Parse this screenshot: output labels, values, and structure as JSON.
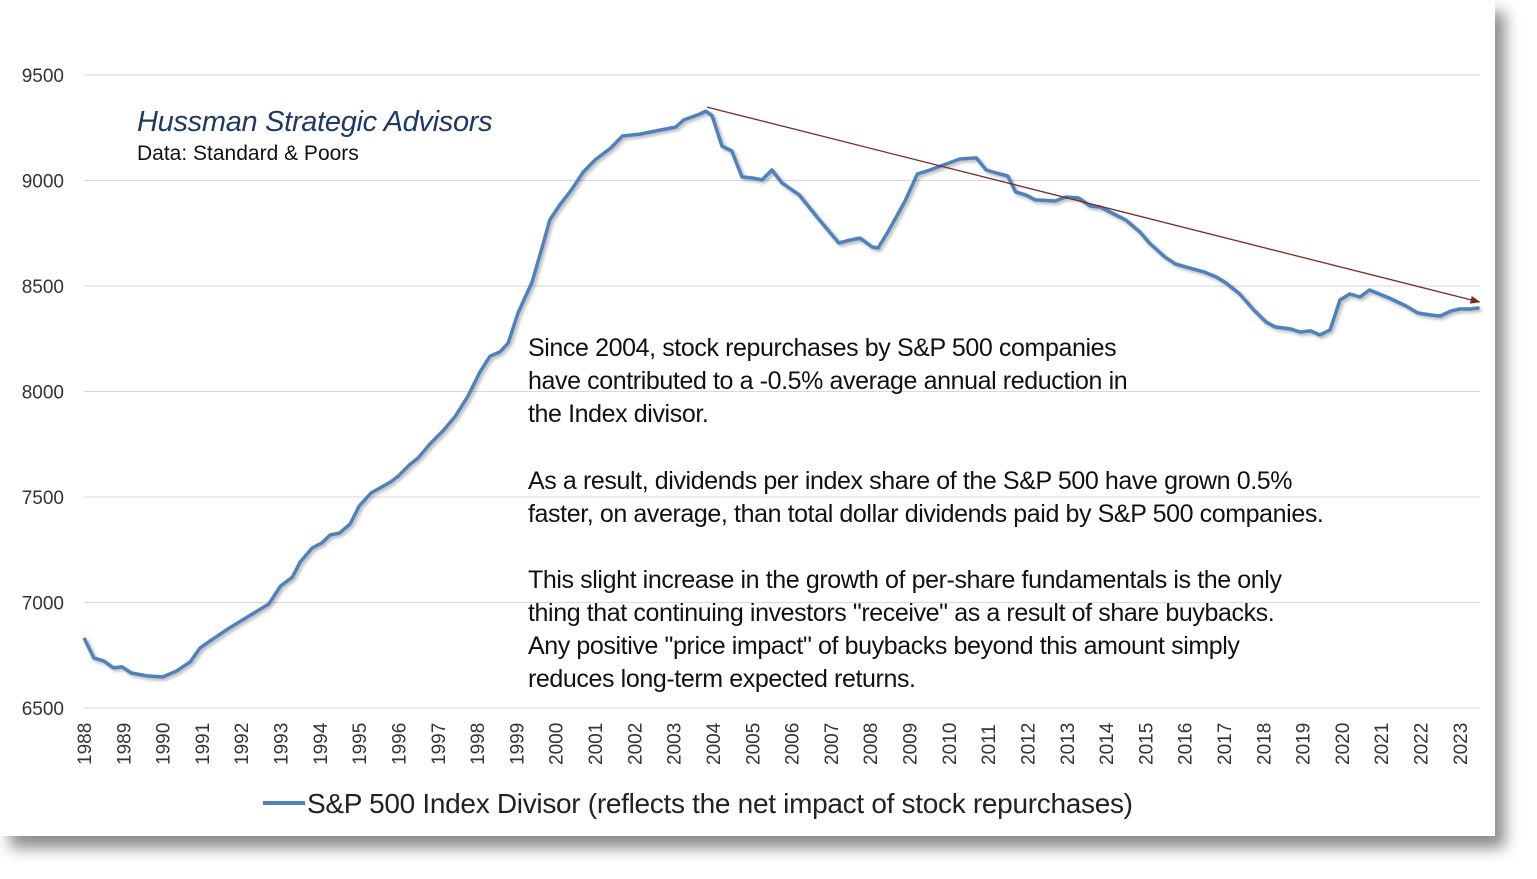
{
  "chart_data": {
    "type": "line",
    "title": "",
    "watermark": {
      "title": "Hussman Strategic Advisors",
      "source": "Data: Standard & Poors"
    },
    "xlabel": "",
    "ylabel": "",
    "ylim": [
      6500,
      9500
    ],
    "xlim": [
      1988,
      2023.5
    ],
    "yticks": [
      6500,
      7000,
      7500,
      8000,
      8500,
      9000,
      9500
    ],
    "xticks": [
      "1988",
      "1989",
      "1990",
      "1991",
      "1992",
      "1993",
      "1994",
      "1995",
      "1996",
      "1997",
      "1998",
      "1999",
      "2000",
      "2001",
      "2002",
      "2003",
      "2004",
      "2005",
      "2006",
      "2007",
      "2008",
      "2009",
      "2010",
      "2011",
      "2012",
      "2013",
      "2014",
      "2015",
      "2016",
      "2017",
      "2018",
      "2019",
      "2020",
      "2021",
      "2022",
      "2023"
    ],
    "grid": true,
    "legend": {
      "position": "bottom",
      "entries": [
        "S&P 500 Index Divisor (reflects the net impact of stock repurchases)"
      ]
    },
    "series": [
      {
        "name": "S&P 500 Index Divisor (reflects the net impact of stock repurchases)",
        "color": "#4f81bd",
        "x": [
          1988.0,
          1988.25,
          1988.5,
          1988.75,
          1988.97,
          1989.2,
          1989.6,
          1990.0,
          1990.35,
          1990.7,
          1990.95,
          1991.2,
          1991.7,
          1992.2,
          1992.7,
          1993.0,
          1993.3,
          1993.5,
          1993.8,
          1994.05,
          1994.26,
          1994.5,
          1994.77,
          1995.0,
          1995.3,
          1995.8,
          1996.0,
          1996.3,
          1996.5,
          1996.8,
          1997.15,
          1997.45,
          1997.77,
          1998.07,
          1998.33,
          1998.58,
          1998.79,
          1999.04,
          1999.4,
          1999.65,
          1999.85,
          2000.1,
          2000.4,
          2000.7,
          2001.0,
          2001.4,
          2001.7,
          2002.15,
          2002.65,
          2003.05,
          2003.26,
          2003.67,
          2003.82,
          2003.98,
          2004.23,
          2004.48,
          2004.74,
          2005.0,
          2005.25,
          2005.5,
          2005.76,
          2006.2,
          2006.67,
          2007.2,
          2007.5,
          2007.74,
          2008.05,
          2008.2,
          2008.45,
          2008.76,
          2008.9,
          2009.2,
          2009.52,
          2009.93,
          2010.28,
          2010.7,
          2010.95,
          2011.3,
          2011.5,
          2011.7,
          2011.96,
          2012.2,
          2012.7,
          2012.98,
          2013.3,
          2013.6,
          2013.85,
          2014.2,
          2014.5,
          2014.86,
          2015.1,
          2015.5,
          2015.77,
          2016.13,
          2016.5,
          2016.8,
          2017.05,
          2017.4,
          2017.76,
          2018.07,
          2018.3,
          2018.7,
          2018.93,
          2019.2,
          2019.44,
          2019.7,
          2019.95,
          2020.2,
          2020.46,
          2020.7,
          2021.2,
          2021.63,
          2021.93,
          2022.28,
          2022.5,
          2022.77,
          2023.0,
          2023.26,
          2023.5
        ],
        "y": [
          6832,
          6737,
          6723,
          6690,
          6695,
          6666,
          6652,
          6647,
          6675,
          6718,
          6784,
          6817,
          6879,
          6936,
          6993,
          7078,
          7120,
          7192,
          7258,
          7282,
          7320,
          7329,
          7372,
          7457,
          7519,
          7571,
          7600,
          7656,
          7685,
          7751,
          7817,
          7884,
          7979,
          8092,
          8168,
          8187,
          8230,
          8372,
          8519,
          8680,
          8813,
          8884,
          8955,
          9040,
          9097,
          9154,
          9211,
          9220,
          9239,
          9253,
          9287,
          9315,
          9329,
          9306,
          9163,
          9140,
          9017,
          9012,
          9003,
          9050,
          8988,
          8931,
          8822,
          8704,
          8718,
          8727,
          8685,
          8680,
          8756,
          8860,
          8908,
          9031,
          9050,
          9078,
          9102,
          9107,
          9050,
          9031,
          9021,
          8946,
          8931,
          8908,
          8903,
          8922,
          8917,
          8879,
          8874,
          8841,
          8813,
          8756,
          8704,
          8637,
          8604,
          8585,
          8566,
          8543,
          8514,
          8462,
          8386,
          8329,
          8306,
          8296,
          8282,
          8287,
          8268,
          8292,
          8434,
          8462,
          8448,
          8481,
          8443,
          8405,
          8372,
          8362,
          8358,
          8381,
          8391,
          8391,
          8396
        ]
      }
    ],
    "trend_arrow": {
      "color": "#7b2a2a",
      "from": [
        2003.85,
        9348
      ],
      "to": [
        2023.5,
        8424
      ]
    },
    "annotations": [
      [
        "Since 2004, stock repurchases by S&P 500 companies",
        "have contributed to a -0.5% average annual reduction in",
        "the Index divisor."
      ],
      [
        "As a result, dividends per index share of the S&P 500 have grown 0.5%",
        "faster, on average, than total dollar dividends paid by S&P 500 companies."
      ],
      [
        "This slight increase in the growth of per-share fundamentals is the only",
        "thing that continuing investors \"receive\" as a result of share buybacks.",
        "Any positive \"price impact\" of buybacks beyond this amount simply",
        "reduces long-term expected returns."
      ]
    ]
  }
}
